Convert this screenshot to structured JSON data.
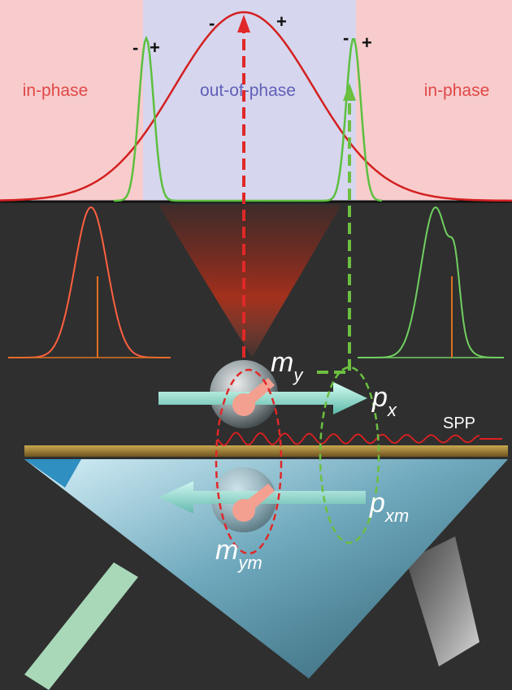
{
  "regions": [
    {
      "label": "in-phase"
    },
    {
      "label": "out-of-phase"
    },
    {
      "label": "in-phase"
    }
  ],
  "signs": [
    {
      "minus": "-",
      "plus": "+"
    },
    {
      "minus": "-",
      "plus": "+"
    },
    {
      "minus": "-",
      "plus": "+"
    }
  ],
  "dipoles": [
    {
      "main": "m",
      "sub": "y"
    },
    {
      "main": "p",
      "sub": "x"
    },
    {
      "main": "p",
      "sub": "xm"
    },
    {
      "main": "m",
      "sub": "ym"
    }
  ],
  "wave_label": "SPP"
}
